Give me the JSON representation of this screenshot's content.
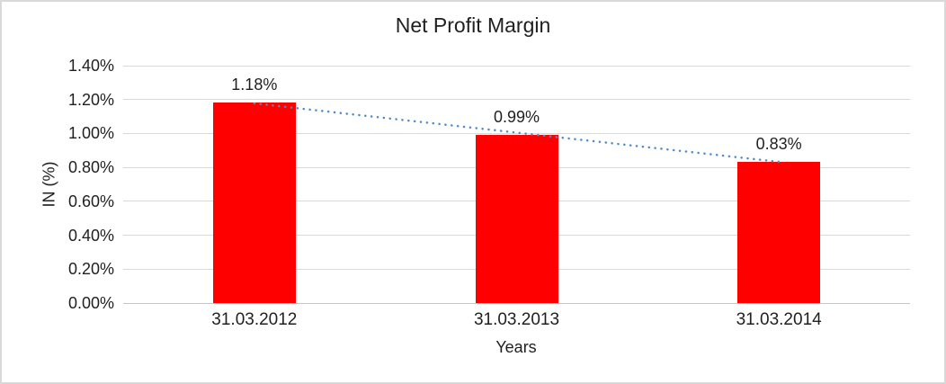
{
  "window": {
    "background": "#ffffff",
    "border_color": "#d9d9d9"
  },
  "chart_data": {
    "type": "bar",
    "title": "Net Profit Margin",
    "xlabel": "Years",
    "ylabel": "IN (%)",
    "categories": [
      "31.03.2012",
      "31.03.2013",
      "31.03.2014"
    ],
    "values": [
      1.18,
      0.99,
      0.83
    ],
    "data_labels": [
      "1.18%",
      "0.99%",
      "0.83%"
    ],
    "ylim": [
      0,
      1.4
    ],
    "ytick_step": 0.2,
    "ytick_labels": [
      "0.00%",
      "0.20%",
      "0.40%",
      "0.60%",
      "0.80%",
      "1.00%",
      "1.20%",
      "1.40%"
    ],
    "grid": true,
    "legend": "none",
    "bar_color": "#ff0000",
    "gridline_color": "#d9d9d9",
    "text_color": "#1f1f1f",
    "trendline": {
      "type": "linear",
      "style": "dotted",
      "color": "#4e8cc6",
      "from_category": "31.03.2012",
      "to_category": "31.03.2014",
      "from_value": 1.18,
      "to_value": 0.83
    }
  }
}
